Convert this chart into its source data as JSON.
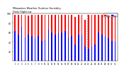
{
  "title": "Milwaukee Weather Outdoor Humidity",
  "subtitle": "Daily High/Low",
  "high_values": [
    97,
    97,
    97,
    97,
    96,
    97,
    97,
    97,
    97,
    97,
    97,
    97,
    97,
    97,
    97,
    97,
    97,
    97,
    92,
    97,
    97,
    87,
    97,
    97,
    97,
    97,
    97,
    97,
    97,
    97,
    97
  ],
  "low_values": [
    62,
    55,
    72,
    50,
    55,
    52,
    48,
    52,
    42,
    45,
    65,
    60,
    55,
    58,
    60,
    62,
    50,
    52,
    35,
    55,
    55,
    30,
    25,
    30,
    35,
    60,
    55,
    52,
    48,
    42,
    40
  ],
  "bar_color_high": "#FF0000",
  "bar_color_low": "#0000FF",
  "bg_color": "#FFFFFF",
  "ylim": [
    0,
    100
  ],
  "ylabel_ticks": [
    20,
    40,
    60,
    80,
    100
  ],
  "xlabel_labels": [
    "1",
    "2",
    "3",
    "4",
    "5",
    "6",
    "7",
    "8",
    "9",
    "10",
    "11",
    "12",
    "13",
    "14",
    "15",
    "16",
    "17",
    "18",
    "19",
    "20",
    "21",
    "22",
    "23",
    "24",
    "25",
    "26",
    "27",
    "28",
    "29",
    "30",
    "31"
  ],
  "legend_high": "High",
  "legend_low": "Low",
  "dashed_line_x": 21.5
}
